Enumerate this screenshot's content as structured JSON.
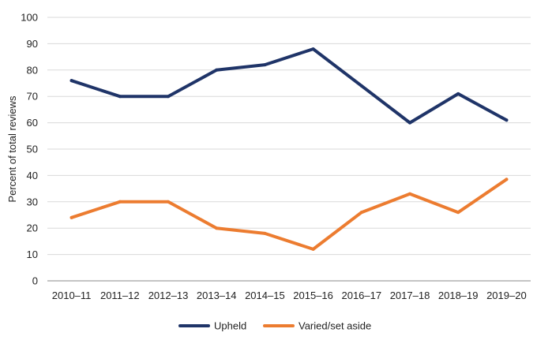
{
  "chart_data": {
    "type": "line",
    "title": "",
    "xlabel": "",
    "ylabel": "Percent of total reviews",
    "categories": [
      "2010–11",
      "2011–12",
      "2012–13",
      "2013–14",
      "2014–15",
      "2015–16",
      "2016–17",
      "2017–18",
      "2018–19",
      "2019–20"
    ],
    "yticks": [
      0,
      10,
      20,
      30,
      40,
      50,
      60,
      70,
      80,
      90,
      100
    ],
    "ylim": [
      0,
      100
    ],
    "grid": "horizontal",
    "legend": "bottom-center",
    "series": [
      {
        "name": "Upheld",
        "color": "#1f3468",
        "values": [
          76,
          70,
          70,
          80,
          82,
          88,
          74,
          60,
          71,
          61
        ]
      },
      {
        "name": "Varied/set aside",
        "color": "#ec7c30",
        "values": [
          24,
          30,
          30,
          20,
          18,
          12,
          26,
          33,
          26,
          38.5
        ]
      }
    ]
  }
}
